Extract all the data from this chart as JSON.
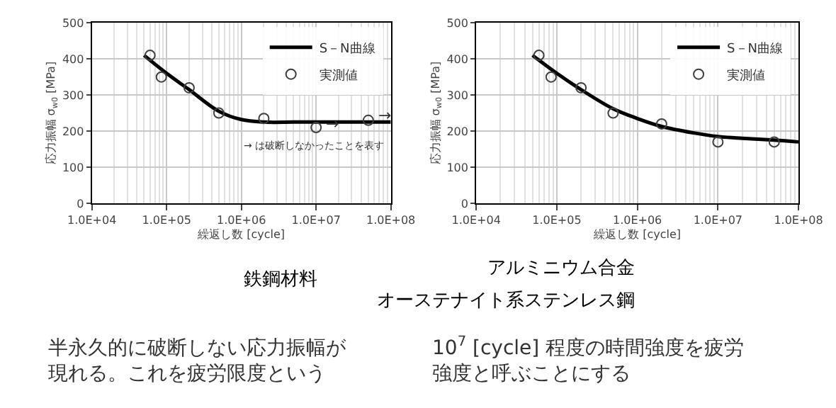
{
  "chart_data": [
    {
      "type": "line",
      "title": "鉄鋼材料",
      "xlabel": "繰返し数 [cycle]",
      "ylabel": "応力振幅 σ$_{w0}$ [MPa]",
      "log": "x",
      "grid": true,
      "legend": "top right",
      "xlim": [
        10000,
        100000000
      ],
      "xticks": [
        {
          "value": 10000,
          "label": "1.0E+04"
        },
        {
          "value": 100000,
          "label": "1.0E+05"
        },
        {
          "value": 1000000,
          "label": "1.0E+06"
        },
        {
          "value": 10000000,
          "label": "1.0E+07"
        },
        {
          "value": 100000000,
          "label": "1.0E+08"
        }
      ],
      "ylim": [
        0,
        500
      ],
      "yticks": [
        0,
        100,
        200,
        300,
        400,
        500
      ],
      "series": [
        {
          "name": "S－N曲線",
          "color": "#000000",
          "marker": "none",
          "x": [
            50000,
            100000,
            200000,
            500000,
            1000000,
            2000000,
            5000000,
            10000000,
            100000000
          ],
          "values": [
            410,
            360,
            315,
            255,
            232,
            225,
            225,
            225,
            225
          ]
        },
        {
          "name": "実測値",
          "type": "scatter",
          "color": "#404040",
          "marker": "circle",
          "x": [
            60000,
            85000,
            200000,
            500000,
            2000000,
            10000000,
            50000000
          ],
          "values": [
            410,
            350,
            320,
            250,
            235,
            210,
            230
          ]
        }
      ],
      "annotations": [
        "半永久的に破断しない応力振幅が現れる。これを疲労限度という",
        "→ は破断しなかったことを表す",
        {
          "text": "→",
          "x": 10000000,
          "y": 210
        },
        {
          "text": "→",
          "x": 50000000,
          "y": 230
        }
      ]
    },
    {
      "type": "line",
      "title": "アルミニウム合金",
      "subtitle": "オーステナイト系ステンレス鋼",
      "xlabel": "繰返し数 [cycle]",
      "ylabel": "応力振幅 σ$_{w0}$ [MPa]",
      "log": "x",
      "grid": true,
      "legend": "top right",
      "xlim": [
        10000,
        100000000
      ],
      "xticks": [
        {
          "value": 10000,
          "label": "1.0E+04"
        },
        {
          "value": 100000,
          "label": "1.0E+05"
        },
        {
          "value": 1000000,
          "label": "1.0E+06"
        },
        {
          "value": 10000000,
          "label": "1.0E+07"
        },
        {
          "value": 100000000,
          "label": "1.0E+08"
        }
      ],
      "ylim": [
        0,
        500
      ],
      "yticks": [
        0,
        100,
        200,
        300,
        400,
        500
      ],
      "series": [
        {
          "name": "S－N曲線",
          "color": "#000000",
          "marker": "none",
          "x": [
            50000,
            100000,
            200000,
            500000,
            1000000,
            2000000,
            5000000,
            10000000,
            20000000,
            50000000,
            100000000
          ],
          "values": [
            410,
            360,
            315,
            262,
            235,
            213,
            195,
            185,
            180,
            175,
            170
          ]
        },
        {
          "name": "実測値",
          "type": "scatter",
          "color": "#404040",
          "marker": "circle",
          "x": [
            60000,
            85000,
            200000,
            500000,
            2000000,
            10000000,
            50000000
          ],
          "values": [
            410,
            350,
            320,
            250,
            220,
            170,
            170
          ]
        }
      ],
      "annotations": [
        "10$^{7}$ [cycle] 程度の時間強度を疲労強度と呼ぶことにする"
      ]
    }
  ]
}
